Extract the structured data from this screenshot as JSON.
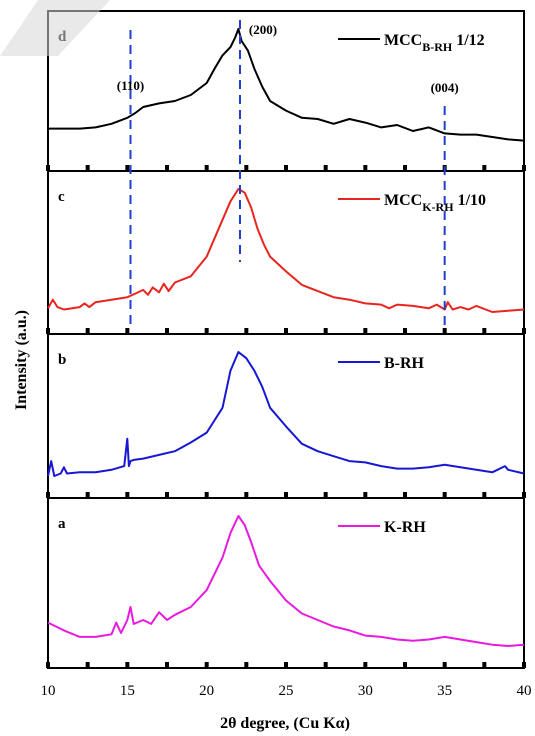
{
  "chart_data": {
    "type": "line",
    "xlabel": "2θ degree, (Cu Kα)",
    "ylabel": "Intensity (a.u.)",
    "xlim": [
      10,
      40
    ],
    "x_ticks": [
      10,
      15,
      20,
      25,
      30,
      35,
      40
    ],
    "reference_lines": {
      "positions": [
        15.2,
        22.1,
        35.0
      ],
      "labels": [
        "(110)",
        "(200)",
        "(004)"
      ],
      "color": "#1f3fd1"
    },
    "panels": [
      {
        "letter": "d",
        "series": {
          "name": "MCC",
          "name_sub": "B-RH",
          "name_suffix": "1/12",
          "color": "#000000",
          "x": [
            10,
            11,
            12,
            13,
            14,
            15,
            15.5,
            16,
            17,
            18,
            19,
            20,
            20.5,
            21,
            21.5,
            21.8,
            22.0,
            22.2,
            22.6,
            23,
            23.5,
            24,
            25,
            26,
            27,
            28,
            29,
            30,
            31,
            32,
            33,
            34,
            35,
            36,
            37,
            38,
            39,
            40
          ],
          "y": [
            0.17,
            0.17,
            0.17,
            0.18,
            0.21,
            0.26,
            0.3,
            0.35,
            0.38,
            0.4,
            0.45,
            0.55,
            0.67,
            0.78,
            0.85,
            0.93,
            1.0,
            0.9,
            0.82,
            0.67,
            0.52,
            0.4,
            0.32,
            0.26,
            0.25,
            0.21,
            0.25,
            0.22,
            0.18,
            0.2,
            0.15,
            0.18,
            0.13,
            0.12,
            0.12,
            0.1,
            0.08,
            0.07
          ]
        }
      },
      {
        "letter": "c",
        "series": {
          "name": "MCC",
          "name_sub": "K-RH",
          "name_suffix": "1/10",
          "color": "#e8251f",
          "x": [
            10,
            10.3,
            10.6,
            11,
            12,
            12.3,
            12.6,
            13,
            14,
            15,
            15.5,
            16,
            16.3,
            16.6,
            17,
            17.3,
            17.6,
            18,
            19,
            20,
            20.5,
            21,
            21.5,
            22.0,
            22.4,
            22.8,
            23.2,
            23.6,
            24,
            25,
            26,
            27,
            28,
            29,
            30,
            31,
            31.5,
            32,
            33,
            34,
            34.5,
            35,
            35.2,
            35.5,
            36,
            36.5,
            37,
            38,
            39,
            40
          ],
          "y": [
            0.03,
            0.1,
            0.04,
            0.02,
            0.04,
            0.07,
            0.04,
            0.08,
            0.1,
            0.12,
            0.15,
            0.18,
            0.14,
            0.2,
            0.16,
            0.23,
            0.17,
            0.24,
            0.29,
            0.45,
            0.6,
            0.75,
            0.9,
            1.0,
            0.97,
            0.85,
            0.68,
            0.55,
            0.45,
            0.33,
            0.22,
            0.17,
            0.12,
            0.1,
            0.07,
            0.06,
            0.03,
            0.06,
            0.05,
            0.03,
            0.06,
            0.02,
            0.08,
            0.02,
            0.04,
            0.02,
            0.05,
            0.0,
            0.01,
            0.02
          ]
        }
      },
      {
        "letter": "b",
        "series": {
          "name": "B-RH",
          "name_sub": "",
          "name_suffix": "",
          "color": "#1717d4",
          "x": [
            10,
            10.2,
            10.4,
            10.8,
            11.0,
            11.2,
            12,
            13,
            14,
            14.8,
            15.0,
            15.1,
            15.2,
            15.4,
            16,
            17,
            18,
            19,
            20,
            21,
            21.5,
            22.0,
            22.5,
            23,
            23.5,
            24,
            25,
            26,
            27,
            28,
            29,
            30,
            31,
            32,
            33,
            34,
            35,
            36,
            37,
            38,
            38.8,
            39,
            40
          ],
          "y": [
            0.0,
            0.12,
            0.0,
            0.02,
            0.07,
            0.02,
            0.03,
            0.03,
            0.05,
            0.08,
            0.3,
            0.08,
            0.12,
            0.13,
            0.14,
            0.17,
            0.2,
            0.27,
            0.35,
            0.55,
            0.85,
            1.0,
            0.95,
            0.85,
            0.72,
            0.55,
            0.4,
            0.26,
            0.2,
            0.16,
            0.12,
            0.11,
            0.08,
            0.06,
            0.06,
            0.07,
            0.09,
            0.07,
            0.05,
            0.03,
            0.08,
            0.05,
            0.02
          ]
        }
      },
      {
        "letter": "a",
        "series": {
          "name": "K-RH",
          "name_sub": "",
          "name_suffix": "",
          "color": "#e81ae0",
          "x": [
            10,
            11,
            12,
            13,
            14,
            14.3,
            14.6,
            15,
            15.2,
            15.4,
            16,
            16.5,
            17,
            17.5,
            18,
            19,
            20,
            21,
            21.5,
            22.0,
            22.4,
            22.8,
            23.3,
            24,
            25,
            26,
            27,
            28,
            29,
            30,
            31,
            32,
            33,
            34,
            35,
            36,
            37,
            38,
            39,
            40
          ],
          "y": [
            0.18,
            0.12,
            0.07,
            0.07,
            0.09,
            0.18,
            0.1,
            0.2,
            0.3,
            0.17,
            0.2,
            0.17,
            0.26,
            0.2,
            0.24,
            0.3,
            0.43,
            0.68,
            0.87,
            1.0,
            0.93,
            0.8,
            0.62,
            0.5,
            0.35,
            0.25,
            0.2,
            0.15,
            0.12,
            0.08,
            0.07,
            0.05,
            0.04,
            0.05,
            0.07,
            0.05,
            0.03,
            0.01,
            0.0,
            0.01
          ]
        }
      }
    ]
  }
}
